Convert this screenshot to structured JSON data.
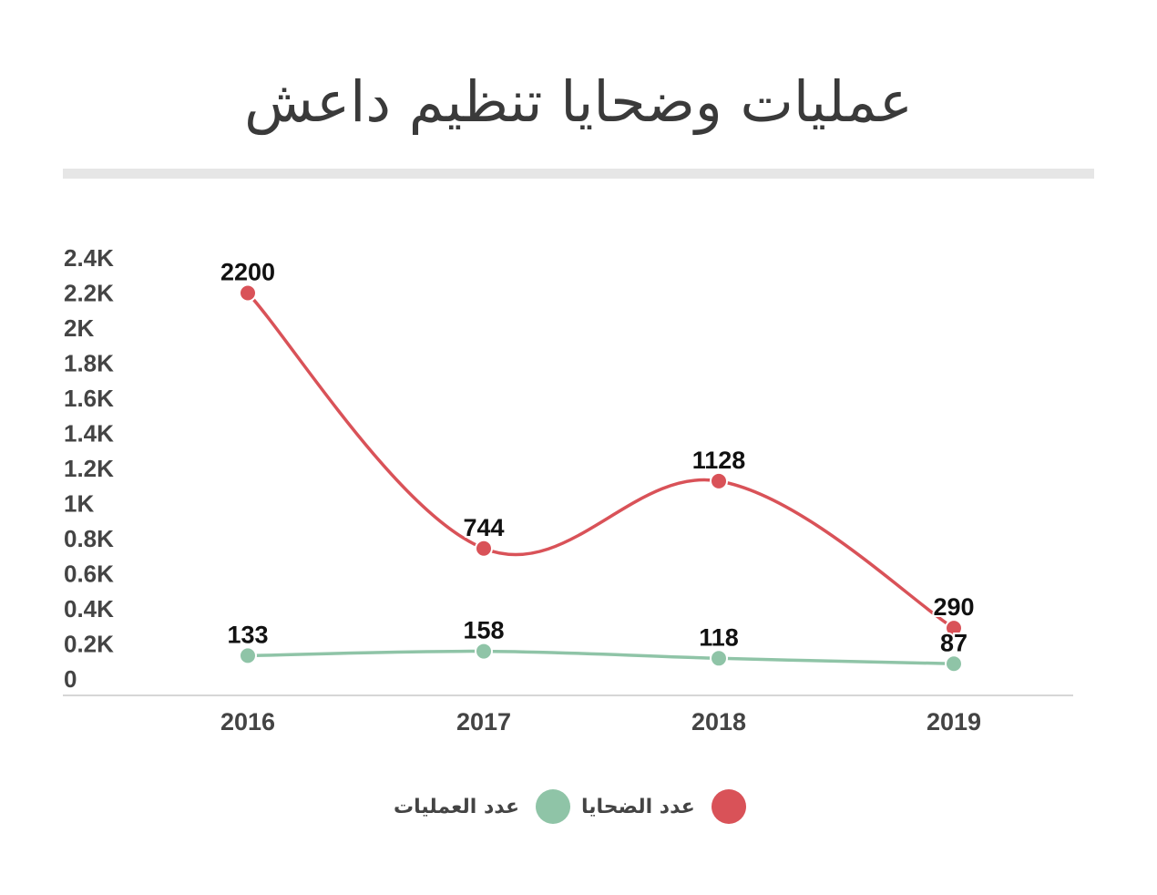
{
  "title": "عمليات وضحايا تنظيم داعش",
  "colors": {
    "victims": "#d95258",
    "operations": "#8fc4a7",
    "axis": "#d6d6d6",
    "divider": "#e6e6e6",
    "ytick": "#444444",
    "xtick": "#444444",
    "label": "#111111"
  },
  "chart_data": {
    "type": "line",
    "categories": [
      "2016",
      "2017",
      "2018",
      "2019"
    ],
    "series": [
      {
        "key": "victims",
        "name": "عدد الضحايا",
        "values": [
          2200,
          744,
          1128,
          290
        ],
        "color": "#d95258"
      },
      {
        "key": "operations",
        "name": "عدد العمليات",
        "values": [
          133,
          158,
          118,
          87
        ],
        "color": "#8fc4a7"
      }
    ],
    "yticks": [
      "0",
      "0.2K",
      "0.4K",
      "0.6K",
      "0.8K",
      "1K",
      "1.2K",
      "1.4K",
      "1.6K",
      "1.8K",
      "2K",
      "2.2K",
      "2.4K"
    ],
    "ylim": [
      0,
      2400
    ],
    "grid": false,
    "legend_position": "bottom-center",
    "smooth": true
  },
  "legend": [
    {
      "label": "عدد الضحايا",
      "color": "#d95258"
    },
    {
      "label": "عدد العمليات",
      "color": "#8fc4a7"
    }
  ]
}
